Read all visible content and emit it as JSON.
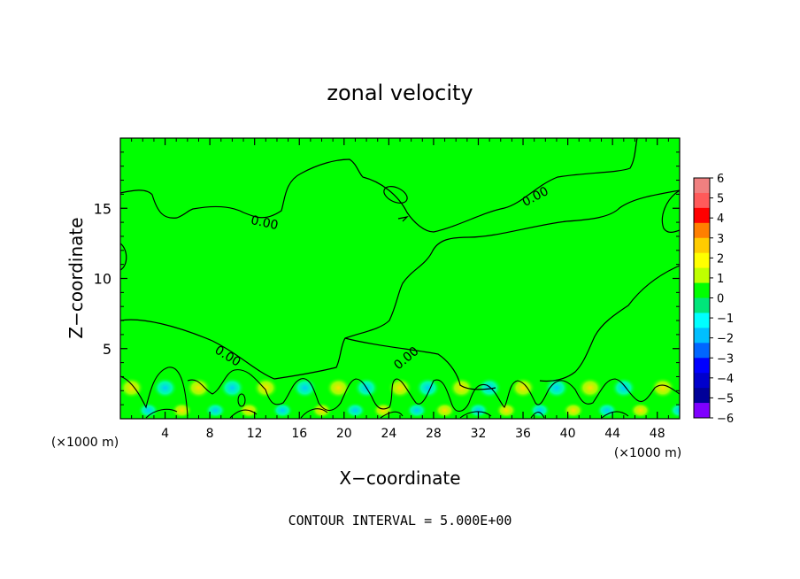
{
  "chart_data": {
    "type": "heatmap",
    "title": "zonal velocity",
    "xlabel": "X−coordinate",
    "ylabel": "Z−coordinate",
    "x_unit_left": "(×1000 m)",
    "x_unit_right": "(×1000 m)",
    "xlim": [
      0,
      50
    ],
    "ylim": [
      0,
      20
    ],
    "xticks": [
      4,
      8,
      12,
      16,
      20,
      24,
      28,
      32,
      36,
      40,
      44,
      48
    ],
    "yticks": [
      5,
      10,
      15
    ],
    "contour_labels": [
      "0.00",
      "0.00",
      "0.00",
      "0.00"
    ],
    "contour_interval_text": "CONTOUR INTERVAL = 5.000E+00",
    "colorbar": {
      "ticks": [
        "6",
        "5",
        "4",
        "3",
        "2",
        "1",
        "0",
        "−1",
        "−2",
        "−3",
        "−4",
        "−5",
        "−6"
      ],
      "colors": [
        "#f08080",
        "#ff5a5a",
        "#ff0000",
        "#ff7f00",
        "#ffcc00",
        "#ffff00",
        "#bfff00",
        "#00ff00",
        "#00e67a",
        "#00ffff",
        "#00bfff",
        "#0066ff",
        "#0000ff",
        "#0000cc",
        "#000099",
        "#7f00ff"
      ]
    },
    "background_color": "#00ff00"
  }
}
